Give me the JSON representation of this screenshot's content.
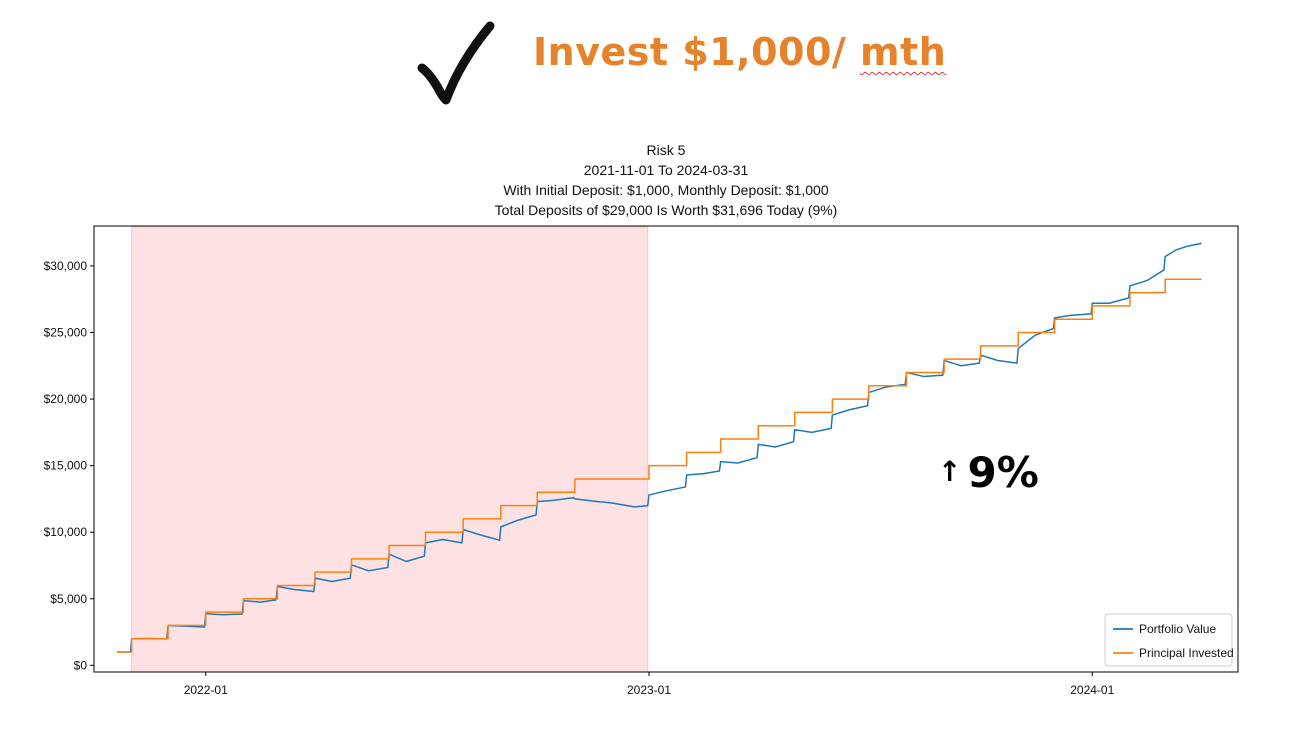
{
  "headline": {
    "check_icon": "checkmark-icon",
    "text_main": "Invest $1,000/ ",
    "text_unit": "mth",
    "color": "#e6822a"
  },
  "annotation": {
    "arrow_icon": "arrow-up-icon",
    "arrow": "↑",
    "text": "9%"
  },
  "chart_data": {
    "type": "line",
    "title_lines": [
      "Risk 5",
      "2021-11-01 To 2024-03-31",
      "With Initial Deposit: $1,000, Monthly Deposit: $1,000",
      "Total Deposits of $29,000 Is Worth $31,696 Today (9%)"
    ],
    "xlabel": "",
    "ylabel": "",
    "x_range": [
      "2021-10-01",
      "2024-04-30"
    ],
    "ylim": [
      -500,
      33000
    ],
    "x_ticks": [
      {
        "date": "2022-01-01",
        "label": "2022-01"
      },
      {
        "date": "2023-01-01",
        "label": "2023-01"
      },
      {
        "date": "2024-01-01",
        "label": "2024-01"
      }
    ],
    "y_ticks": [
      {
        "value": 0,
        "label": "$0"
      },
      {
        "value": 5000,
        "label": "$5,000"
      },
      {
        "value": 10000,
        "label": "$10,000"
      },
      {
        "value": 15000,
        "label": "$15,000"
      },
      {
        "value": 20000,
        "label": "$20,000"
      },
      {
        "value": 25000,
        "label": "$25,000"
      },
      {
        "value": 30000,
        "label": "$30,000"
      }
    ],
    "shaded_region": {
      "start": "2021-11-01",
      "end": "2022-12-31",
      "color": "#fde1e3"
    },
    "grid": false,
    "legend_position": "bottom-right",
    "series": [
      {
        "name": "Portfolio Value",
        "color": "#1f77b4",
        "points": [
          [
            "2021-10-20",
            1000
          ],
          [
            "2021-10-31",
            1000
          ],
          [
            "2021-11-01",
            2000
          ],
          [
            "2021-11-15",
            2020
          ],
          [
            "2021-11-30",
            1990
          ],
          [
            "2021-12-01",
            2990
          ],
          [
            "2021-12-15",
            2950
          ],
          [
            "2021-12-31",
            2880
          ],
          [
            "2022-01-01",
            3880
          ],
          [
            "2022-01-15",
            3800
          ],
          [
            "2022-01-31",
            3860
          ],
          [
            "2022-02-01",
            4860
          ],
          [
            "2022-02-15",
            4750
          ],
          [
            "2022-02-28",
            4920
          ],
          [
            "2022-03-01",
            5920
          ],
          [
            "2022-03-15",
            5700
          ],
          [
            "2022-03-31",
            5550
          ],
          [
            "2022-04-01",
            6550
          ],
          [
            "2022-04-15",
            6300
          ],
          [
            "2022-04-30",
            6550
          ],
          [
            "2022-05-01",
            7550
          ],
          [
            "2022-05-15",
            7100
          ],
          [
            "2022-05-31",
            7350
          ],
          [
            "2022-06-01",
            8350
          ],
          [
            "2022-06-15",
            7800
          ],
          [
            "2022-06-30",
            8200
          ],
          [
            "2022-07-01",
            9200
          ],
          [
            "2022-07-15",
            9450
          ],
          [
            "2022-07-31",
            9200
          ],
          [
            "2022-08-01",
            10200
          ],
          [
            "2022-08-15",
            9800
          ],
          [
            "2022-08-31",
            9400
          ],
          [
            "2022-09-01",
            10400
          ],
          [
            "2022-09-15",
            10900
          ],
          [
            "2022-09-30",
            11300
          ],
          [
            "2022-10-01",
            12300
          ],
          [
            "2022-10-15",
            12400
          ],
          [
            "2022-10-31",
            12600
          ],
          [
            "2022-11-01",
            12500
          ],
          [
            "2022-11-20",
            12300
          ],
          [
            "2022-12-01",
            12200
          ],
          [
            "2022-12-20",
            11900
          ],
          [
            "2022-12-31",
            12000
          ],
          [
            "2023-01-01",
            12800
          ],
          [
            "2023-01-15",
            13100
          ],
          [
            "2023-01-31",
            13400
          ],
          [
            "2023-02-01",
            14300
          ],
          [
            "2023-02-15",
            14400
          ],
          [
            "2023-02-28",
            14600
          ],
          [
            "2023-03-01",
            15300
          ],
          [
            "2023-03-15",
            15200
          ],
          [
            "2023-03-31",
            15600
          ],
          [
            "2023-04-01",
            16600
          ],
          [
            "2023-04-15",
            16400
          ],
          [
            "2023-04-30",
            16800
          ],
          [
            "2023-05-01",
            17700
          ],
          [
            "2023-05-15",
            17500
          ],
          [
            "2023-05-31",
            17800
          ],
          [
            "2023-06-01",
            18800
          ],
          [
            "2023-06-15",
            19200
          ],
          [
            "2023-06-30",
            19500
          ],
          [
            "2023-07-01",
            20500
          ],
          [
            "2023-07-15",
            20900
          ],
          [
            "2023-07-31",
            21100
          ],
          [
            "2023-08-01",
            22000
          ],
          [
            "2023-08-15",
            21700
          ],
          [
            "2023-08-31",
            21800
          ],
          [
            "2023-09-01",
            22900
          ],
          [
            "2023-09-15",
            22500
          ],
          [
            "2023-09-30",
            22700
          ],
          [
            "2023-10-01",
            23300
          ],
          [
            "2023-10-15",
            22900
          ],
          [
            "2023-10-31",
            22700
          ],
          [
            "2023-11-01",
            23800
          ],
          [
            "2023-11-15",
            24800
          ],
          [
            "2023-11-30",
            25300
          ],
          [
            "2023-12-01",
            26100
          ],
          [
            "2023-12-15",
            26300
          ],
          [
            "2023-12-31",
            26400
          ],
          [
            "2024-01-01",
            27200
          ],
          [
            "2024-01-15",
            27200
          ],
          [
            "2024-01-31",
            27600
          ],
          [
            "2024-02-01",
            28500
          ],
          [
            "2024-02-15",
            28900
          ],
          [
            "2024-02-29",
            29700
          ],
          [
            "2024-03-01",
            30700
          ],
          [
            "2024-03-10",
            31200
          ],
          [
            "2024-03-20",
            31500
          ],
          [
            "2024-03-31",
            31696
          ]
        ]
      },
      {
        "name": "Principal Invested",
        "color": "#ff7f0e",
        "points": [
          [
            "2021-10-20",
            1000
          ],
          [
            "2021-11-01",
            2000
          ],
          [
            "2021-12-01",
            3000
          ],
          [
            "2022-01-01",
            4000
          ],
          [
            "2022-02-01",
            5000
          ],
          [
            "2022-03-01",
            6000
          ],
          [
            "2022-04-01",
            7000
          ],
          [
            "2022-05-01",
            8000
          ],
          [
            "2022-06-01",
            9000
          ],
          [
            "2022-07-01",
            10000
          ],
          [
            "2022-08-01",
            11000
          ],
          [
            "2022-09-01",
            12000
          ],
          [
            "2022-10-01",
            13000
          ],
          [
            "2022-11-01",
            14000
          ],
          [
            "2023-01-01",
            15000
          ],
          [
            "2023-02-01",
            16000
          ],
          [
            "2023-03-01",
            17000
          ],
          [
            "2023-04-01",
            18000
          ],
          [
            "2023-05-01",
            19000
          ],
          [
            "2023-06-01",
            20000
          ],
          [
            "2023-07-01",
            21000
          ],
          [
            "2023-08-01",
            22000
          ],
          [
            "2023-09-01",
            23000
          ],
          [
            "2023-10-01",
            24000
          ],
          [
            "2023-11-01",
            25000
          ],
          [
            "2023-12-01",
            26000
          ],
          [
            "2024-01-01",
            27000
          ],
          [
            "2024-02-01",
            28000
          ],
          [
            "2024-03-01",
            29000
          ],
          [
            "2024-03-31",
            29000
          ]
        ]
      }
    ]
  }
}
